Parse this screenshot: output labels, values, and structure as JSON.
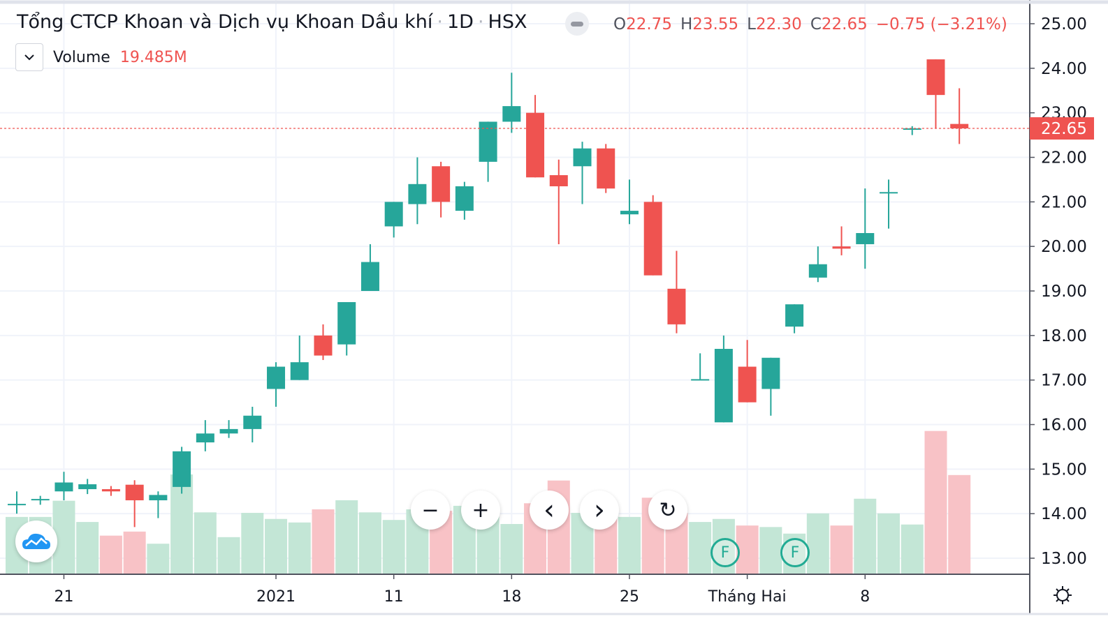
{
  "header": {
    "title": "Tổng CTCP Khoan và Dịch vụ Khoan Dầu khí",
    "interval": "1D",
    "exchange": "HSX",
    "ohlc": {
      "o_label": "O",
      "o": "22.75",
      "h_label": "H",
      "h": "23.55",
      "l_label": "L",
      "l": "22.30",
      "c_label": "C",
      "c": "22.65",
      "change": "−0.75 (−3.21%)"
    }
  },
  "volume_legend": {
    "label": "Volume",
    "value": "19.485M"
  },
  "last_price_label": "22.65",
  "colors": {
    "up": "#26a69a",
    "down": "#ef5350",
    "vol_up": "#c3e6d6",
    "vol_down": "#f8c2c6"
  },
  "controls": {
    "zoom_out": "−",
    "zoom_in": "+",
    "scroll_left": "‹",
    "scroll_right": "›",
    "reset": "↻"
  },
  "markers": [
    {
      "label": "F"
    },
    {
      "label": "F"
    }
  ],
  "chart_data": {
    "type": "candlestick",
    "ylim": [
      12.6,
      25.3
    ],
    "y_ticks": [
      "25.00",
      "24.00",
      "23.00",
      "22.00",
      "21.00",
      "20.00",
      "19.00",
      "18.00",
      "17.00",
      "16.00",
      "15.00",
      "14.00",
      "13.00"
    ],
    "x_ticks": [
      {
        "i": 2,
        "label": "21"
      },
      {
        "i": 11,
        "label": "2021"
      },
      {
        "i": 16,
        "label": "11"
      },
      {
        "i": 21,
        "label": "18"
      },
      {
        "i": 26,
        "label": "25"
      },
      {
        "i": 31,
        "label": "Tháng Hai"
      },
      {
        "i": 36,
        "label": "8"
      }
    ],
    "candles": [
      [
        14.2,
        14.5,
        14.0,
        14.22,
        11.2
      ],
      [
        14.3,
        14.4,
        14.2,
        14.33,
        11.2
      ],
      [
        14.5,
        14.94,
        14.3,
        14.7,
        14.4
      ],
      [
        14.55,
        14.78,
        14.44,
        14.66,
        10.2
      ],
      [
        14.55,
        14.62,
        14.4,
        14.5,
        7.5
      ],
      [
        14.65,
        14.75,
        13.7,
        14.3,
        8.3
      ],
      [
        14.3,
        14.5,
        13.9,
        14.42,
        5.9
      ],
      [
        14.6,
        15.5,
        14.45,
        15.4,
        19.6
      ],
      [
        15.6,
        16.1,
        15.4,
        15.8,
        12.1
      ],
      [
        15.8,
        16.1,
        15.7,
        15.9,
        7.2
      ],
      [
        15.9,
        16.4,
        15.6,
        16.2,
        12.0
      ],
      [
        16.8,
        17.4,
        16.4,
        17.3,
        10.8
      ],
      [
        17.0,
        18.0,
        17.0,
        17.4,
        10.1
      ],
      [
        18.0,
        18.25,
        17.45,
        17.55,
        12.7
      ],
      [
        17.8,
        18.75,
        17.55,
        18.75,
        14.5
      ],
      [
        19.0,
        20.05,
        19.0,
        19.65,
        12.1
      ],
      [
        20.45,
        21.0,
        20.2,
        21.0,
        10.6
      ],
      [
        20.95,
        22.0,
        20.5,
        21.4,
        12.7
      ],
      [
        21.8,
        21.9,
        20.65,
        21.0,
        12.4
      ],
      [
        20.8,
        21.45,
        20.6,
        21.35,
        13.4
      ],
      [
        21.9,
        22.8,
        21.45,
        22.8,
        12.0
      ],
      [
        22.8,
        23.9,
        22.55,
        23.15,
        9.8
      ],
      [
        23.0,
        23.4,
        21.55,
        21.55,
        13.9
      ],
      [
        21.6,
        21.95,
        20.05,
        21.35,
        18.4
      ],
      [
        21.8,
        22.35,
        20.95,
        22.2,
        12.0
      ],
      [
        22.2,
        22.3,
        21.2,
        21.3,
        11.7
      ],
      [
        20.72,
        21.5,
        20.5,
        20.8,
        11.2
      ],
      [
        21.0,
        21.15,
        19.35,
        19.35,
        15.0
      ],
      [
        19.05,
        19.9,
        18.05,
        18.25,
        12.0
      ],
      [
        17.0,
        17.6,
        17.0,
        17.02,
        10.2
      ],
      [
        16.05,
        18.0,
        16.05,
        17.7,
        10.8
      ],
      [
        17.3,
        17.9,
        16.5,
        16.5,
        9.5
      ],
      [
        16.8,
        17.5,
        16.2,
        17.5,
        9.2
      ],
      [
        18.2,
        18.7,
        18.05,
        18.7,
        7.9
      ],
      [
        19.3,
        20.0,
        19.2,
        19.6,
        11.9
      ],
      [
        20.0,
        20.45,
        19.8,
        19.95,
        9.5
      ],
      [
        20.05,
        21.3,
        19.5,
        20.3,
        14.8
      ],
      [
        21.2,
        21.5,
        20.4,
        21.22,
        11.9
      ],
      [
        22.63,
        22.7,
        22.5,
        22.65,
        9.7
      ],
      [
        24.2,
        24.2,
        22.65,
        23.4,
        28.2
      ],
      [
        22.75,
        23.55,
        22.3,
        22.65,
        19.485
      ]
    ],
    "candle_fields": [
      "open",
      "high",
      "low",
      "close",
      "volume_M"
    ]
  }
}
